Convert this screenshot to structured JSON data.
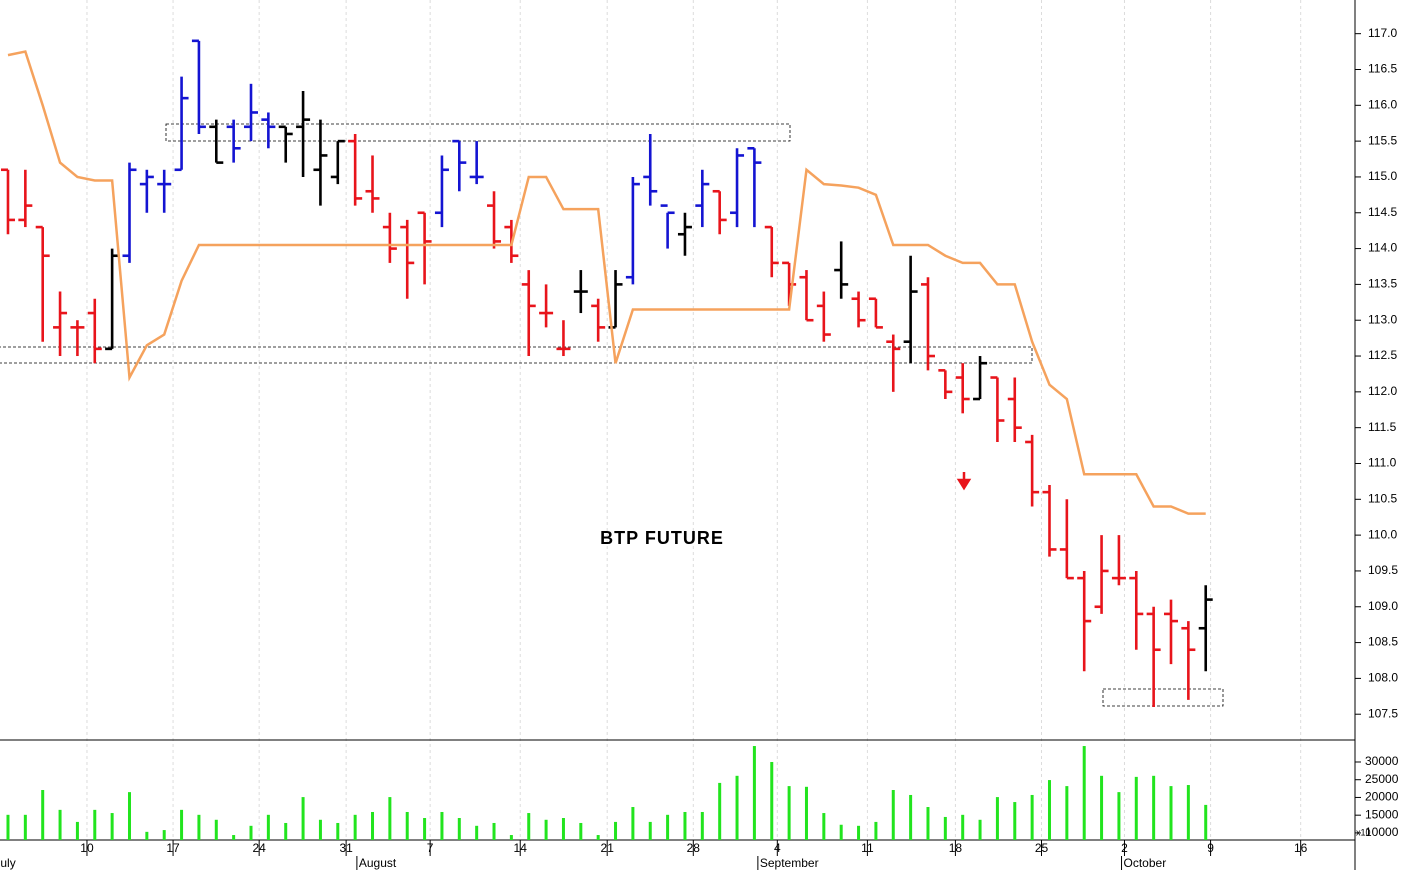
{
  "chart_data": {
    "type": "ohlc",
    "title": "BTP FUTURE",
    "xlim": [
      -0.46,
      77.6
    ],
    "xticks": [
      {
        "value": 4.55,
        "label": "10"
      },
      {
        "value": 9.51,
        "label": "17"
      },
      {
        "value": 14.47,
        "label": "24"
      },
      {
        "value": 19.48,
        "label": "31"
      },
      {
        "value": 24.32,
        "label": "7"
      },
      {
        "value": 29.51,
        "label": "14"
      },
      {
        "value": 34.52,
        "label": "21"
      },
      {
        "value": 39.48,
        "label": "28"
      },
      {
        "value": 44.32,
        "label": "4"
      },
      {
        "value": 49.51,
        "label": "11"
      },
      {
        "value": 54.58,
        "label": "18"
      },
      {
        "value": 59.54,
        "label": "25"
      },
      {
        "value": 64.32,
        "label": "2"
      },
      {
        "value": 69.28,
        "label": "9"
      },
      {
        "value": 74.47,
        "label": "16"
      }
    ],
    "month_ticks": [
      {
        "value": -0.9,
        "label": "July"
      },
      {
        "value": 20.1,
        "label": "August"
      },
      {
        "value": 43.2,
        "label": "September"
      },
      {
        "value": 64.15,
        "label": "October"
      }
    ],
    "ylim": [
      107.14,
      117.47
    ],
    "yticks": [
      {
        "value": 107.5,
        "label": "107.5"
      },
      {
        "value": 108,
        "label": "108.0"
      },
      108.5,
      {
        "value": 109,
        "label": "109.0"
      },
      109.5,
      {
        "value": 110,
        "label": "110.0"
      },
      110.5,
      {
        "value": 111,
        "label": "111.0"
      },
      111.5,
      {
        "value": 112,
        "label": "112.0"
      },
      112.5,
      {
        "value": 113,
        "label": "113.0"
      },
      113.5,
      {
        "value": 114,
        "label": "114.0"
      },
      114.5,
      {
        "value": 115,
        "label": "115.0"
      },
      115.5,
      {
        "value": 116,
        "label": "116.0"
      },
      116.5,
      {
        "value": 117,
        "label": "117.0"
      }
    ],
    "open": [
      115.1,
      114.4,
      114.3,
      112.9,
      112.9,
      113.1,
      112.6,
      113.9,
      114.9,
      114.9,
      115.1,
      116.9,
      115.7,
      115.7,
      115.7,
      115.8,
      115.7,
      115.7,
      115.1,
      115.0,
      115.5,
      114.8,
      114.3,
      114.3,
      114.5,
      114.5,
      115.5,
      115.0,
      114.6,
      114.3,
      113.5,
      113.1,
      112.6,
      113.4,
      113.2,
      112.9,
      113.6,
      115.0,
      114.6,
      114.2,
      114.6,
      114.8,
      114.5,
      115.4,
      114.3,
      113.8,
      113.6,
      113.2,
      113.7,
      113.3,
      113.3,
      112.7,
      112.7,
      113.5,
      112.3,
      112.2,
      111.9,
      112.2,
      111.9,
      111.3,
      110.6,
      109.8,
      109.4,
      109.0,
      109.4,
      109.4,
      108.9,
      108.9,
      108.7,
      108.7
    ],
    "high": [
      115.1,
      115.1,
      114.3,
      113.4,
      113.0,
      113.3,
      114.0,
      115.2,
      115.1,
      115.1,
      116.4,
      116.9,
      115.8,
      115.8,
      116.3,
      115.9,
      115.7,
      116.2,
      115.8,
      115.5,
      115.6,
      115.3,
      114.5,
      114.4,
      114.5,
      115.3,
      115.5,
      115.5,
      114.8,
      114.4,
      113.7,
      113.5,
      113.0,
      113.7,
      113.3,
      113.7,
      115.0,
      115.6,
      114.5,
      114.5,
      115.1,
      114.8,
      115.4,
      115.4,
      114.3,
      113.8,
      113.7,
      113.4,
      114.1,
      113.4,
      113.3,
      112.8,
      113.9,
      113.6,
      112.3,
      112.4,
      112.5,
      112.2,
      112.2,
      111.4,
      110.7,
      110.5,
      109.5,
      110.0,
      110.0,
      109.5,
      109.0,
      109.1,
      108.8,
      109.3
    ],
    "low": [
      114.2,
      114.3,
      112.7,
      112.5,
      112.5,
      112.4,
      112.6,
      113.8,
      114.5,
      114.5,
      115.1,
      115.6,
      115.2,
      115.2,
      115.5,
      115.4,
      115.2,
      115.0,
      114.6,
      114.9,
      114.6,
      114.5,
      113.8,
      113.3,
      113.5,
      114.3,
      114.8,
      114.9,
      114.0,
      113.8,
      112.5,
      112.9,
      112.5,
      113.1,
      112.7,
      112.9,
      113.5,
      114.6,
      114.0,
      113.9,
      114.3,
      114.2,
      114.3,
      114.3,
      113.6,
      113.2,
      113.0,
      112.7,
      113.3,
      112.9,
      112.9,
      112.0,
      112.4,
      112.3,
      111.9,
      111.7,
      111.9,
      111.3,
      111.3,
      110.4,
      109.7,
      109.4,
      108.1,
      108.9,
      109.3,
      108.4,
      107.6,
      108.2,
      107.7,
      108.1
    ],
    "close": [
      114.4,
      114.6,
      113.9,
      113.1,
      112.9,
      112.6,
      113.9,
      115.1,
      115.0,
      114.9,
      116.1,
      115.7,
      115.2,
      115.4,
      115.9,
      115.7,
      115.6,
      115.8,
      115.3,
      115.5,
      114.7,
      114.7,
      114.0,
      113.8,
      114.1,
      115.1,
      115.2,
      115.0,
      114.1,
      113.9,
      113.2,
      113.1,
      112.6,
      113.4,
      112.9,
      113.5,
      114.9,
      114.8,
      114.5,
      114.3,
      114.9,
      114.4,
      115.3,
      115.2,
      113.8,
      113.5,
      113.0,
      112.8,
      113.5,
      113.0,
      112.9,
      112.6,
      113.4,
      112.5,
      112.0,
      111.9,
      112.4,
      111.6,
      111.5,
      110.6,
      109.8,
      109.4,
      108.8,
      109.5,
      109.4,
      108.9,
      108.4,
      108.8,
      108.4,
      109.1
    ],
    "bar_colors": [
      "#e8141b",
      "#e8141b",
      "#e8141b",
      "#e8141b",
      "#e8141b",
      "#e8141b",
      "#000000",
      "#1414d2",
      "#1414d2",
      "#1414d2",
      "#1414d2",
      "#1414d2",
      "#000000",
      "#1414d2",
      "#1414d2",
      "#1414d2",
      "#000000",
      "#000000",
      "#000000",
      "#000000",
      "#e8141b",
      "#e8141b",
      "#e8141b",
      "#e8141b",
      "#e8141b",
      "#1414d2",
      "#1414d2",
      "#1414d2",
      "#e8141b",
      "#e8141b",
      "#e8141b",
      "#e8141b",
      "#e8141b",
      "#000000",
      "#e8141b",
      "#000000",
      "#1414d2",
      "#1414d2",
      "#1414d2",
      "#000000",
      "#1414d2",
      "#e8141b",
      "#1414d2",
      "#1414d2",
      "#e8141b",
      "#e8141b",
      "#e8141b",
      "#e8141b",
      "#000000",
      "#e8141b",
      "#e8141b",
      "#e8141b",
      "#000000",
      "#e8141b",
      "#e8141b",
      "#e8141b",
      "#000000",
      "#e8141b",
      "#e8141b",
      "#e8141b",
      "#e8141b",
      "#e8141b",
      "#e8141b",
      "#e8141b",
      "#e8141b",
      "#e8141b",
      "#e8141b",
      "#e8141b",
      "#e8141b",
      "#000000"
    ],
    "line": {
      "color": "#f5a25d",
      "values": [
        116.7,
        116.75,
        116.0,
        115.2,
        115.0,
        114.95,
        114.95,
        112.2,
        112.65,
        112.8,
        113.55,
        114.05,
        114.05,
        114.05,
        114.05,
        114.05,
        114.05,
        114.05,
        114.05,
        114.05,
        114.05,
        114.05,
        114.05,
        114.05,
        114.05,
        114.05,
        114.05,
        114.05,
        114.05,
        114.05,
        115.0,
        115.0,
        114.55,
        114.55,
        114.55,
        112.4,
        113.15,
        113.15,
        113.15,
        113.15,
        113.15,
        113.15,
        113.15,
        113.15,
        113.15,
        113.15,
        115.1,
        114.9,
        114.88,
        114.85,
        114.75,
        114.05,
        114.05,
        114.05,
        113.9,
        113.8,
        113.8,
        113.5,
        113.5,
        112.7,
        112.1,
        111.9,
        110.85,
        110.85,
        110.85,
        110.85,
        110.4,
        110.4,
        110.3,
        110.3
      ]
    },
    "volume": {
      "color": "#22e41e",
      "unit_label": "x10",
      "ylim": [
        8000,
        36200
      ],
      "yticks": [
        10000,
        15000,
        20000,
        25000,
        30000
      ],
      "values": [
        15100,
        15100,
        22100,
        16500,
        13100,
        16500,
        15600,
        21500,
        10300,
        10800,
        16500,
        15100,
        13700,
        9400,
        12000,
        15100,
        12800,
        20100,
        13700,
        12800,
        15100,
        15900,
        20100,
        15900,
        14200,
        15900,
        14200,
        12000,
        12800,
        9400,
        15600,
        13700,
        14200,
        12800,
        9400,
        13100,
        17300,
        13100,
        15100,
        15900,
        15900,
        24100,
        26100,
        34500,
        30000,
        23200,
        23000,
        15600,
        12300,
        12000,
        13100,
        22100,
        20700,
        17300,
        14500,
        15100,
        13700,
        20100,
        18700,
        20700,
        24900,
        23200,
        34500,
        26100,
        21500,
        25800,
        26100,
        23200,
        23500,
        17900
      ]
    }
  }
}
